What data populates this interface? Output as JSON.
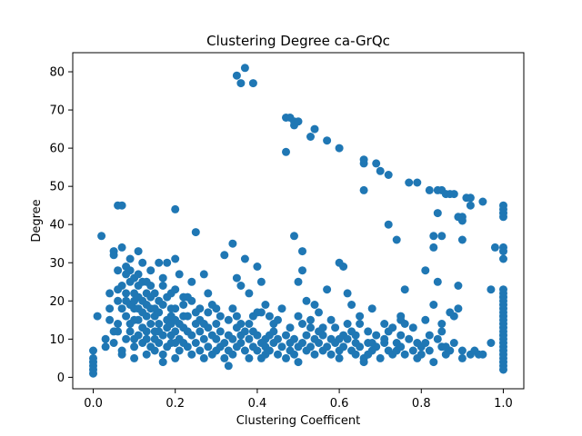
{
  "chart_data": {
    "type": "scatter",
    "title": "Clustering Degree ca-GrQc",
    "xlabel": "Clustering Coefficent",
    "ylabel": "Degree",
    "xlim": [
      -0.05,
      1.05
    ],
    "ylim": [
      -3,
      85
    ],
    "xticks": [
      0.0,
      0.2,
      0.4,
      0.6,
      0.8,
      1.0
    ],
    "xtick_labels": [
      "0.0",
      "0.2",
      "0.4",
      "0.6",
      "0.8",
      "1.0"
    ],
    "yticks": [
      0,
      10,
      20,
      30,
      40,
      50,
      60,
      70,
      80
    ],
    "ytick_labels": [
      "0",
      "10",
      "20",
      "30",
      "40",
      "50",
      "60",
      "70",
      "80"
    ],
    "grid": false,
    "color": "#1f77b4",
    "points": [
      [
        0.0,
        1
      ],
      [
        0.0,
        2
      ],
      [
        0.0,
        3
      ],
      [
        0.0,
        4
      ],
      [
        0.0,
        5
      ],
      [
        0.0,
        7
      ],
      [
        0.01,
        16
      ],
      [
        0.02,
        37
      ],
      [
        0.03,
        8
      ],
      [
        0.04,
        22
      ],
      [
        0.05,
        33
      ],
      [
        0.05,
        32
      ],
      [
        0.06,
        45
      ],
      [
        0.07,
        45
      ],
      [
        0.06,
        28
      ],
      [
        0.07,
        34
      ],
      [
        0.08,
        29
      ],
      [
        0.06,
        14
      ],
      [
        0.07,
        18
      ],
      [
        0.08,
        20
      ],
      [
        0.08,
        10
      ],
      [
        0.09,
        25
      ],
      [
        0.1,
        22
      ],
      [
        0.1,
        18
      ],
      [
        0.11,
        33
      ],
      [
        0.12,
        30
      ],
      [
        0.11,
        24
      ],
      [
        0.12,
        20
      ],
      [
        0.13,
        16
      ],
      [
        0.14,
        28
      ],
      [
        0.14,
        14
      ],
      [
        0.15,
        12
      ],
      [
        0.16,
        20
      ],
      [
        0.17,
        24
      ],
      [
        0.18,
        30
      ],
      [
        0.19,
        18
      ],
      [
        0.19,
        9
      ],
      [
        0.2,
        31
      ],
      [
        0.2,
        44
      ],
      [
        0.21,
        27
      ],
      [
        0.22,
        21
      ],
      [
        0.22,
        13
      ],
      [
        0.24,
        25
      ],
      [
        0.25,
        38
      ],
      [
        0.25,
        17
      ],
      [
        0.27,
        27
      ],
      [
        0.28,
        22
      ],
      [
        0.3,
        14
      ],
      [
        0.32,
        32
      ],
      [
        0.34,
        35
      ],
      [
        0.35,
        26
      ],
      [
        0.36,
        24
      ],
      [
        0.37,
        31
      ],
      [
        0.38,
        22
      ],
      [
        0.39,
        12
      ],
      [
        0.4,
        29
      ],
      [
        0.41,
        25
      ],
      [
        0.41,
        17
      ],
      [
        0.42,
        10
      ],
      [
        0.43,
        16
      ],
      [
        0.44,
        14
      ],
      [
        0.35,
        79
      ],
      [
        0.36,
        77
      ],
      [
        0.37,
        81
      ],
      [
        0.39,
        77
      ],
      [
        0.47,
        59
      ],
      [
        0.47,
        68
      ],
      [
        0.48,
        68
      ],
      [
        0.49,
        66
      ],
      [
        0.49,
        67
      ],
      [
        0.5,
        67
      ],
      [
        0.49,
        37
      ],
      [
        0.5,
        25
      ],
      [
        0.51,
        33
      ],
      [
        0.51,
        28
      ],
      [
        0.52,
        20
      ],
      [
        0.53,
        63
      ],
      [
        0.54,
        65
      ],
      [
        0.54,
        19
      ],
      [
        0.55,
        17
      ],
      [
        0.57,
        23
      ],
      [
        0.57,
        62
      ],
      [
        0.6,
        60
      ],
      [
        0.6,
        30
      ],
      [
        0.61,
        29
      ],
      [
        0.62,
        22
      ],
      [
        0.63,
        19
      ],
      [
        0.65,
        14
      ],
      [
        0.66,
        56
      ],
      [
        0.66,
        57
      ],
      [
        0.66,
        49
      ],
      [
        0.68,
        18
      ],
      [
        0.69,
        56
      ],
      [
        0.7,
        54
      ],
      [
        0.72,
        40
      ],
      [
        0.72,
        53
      ],
      [
        0.74,
        36
      ],
      [
        0.75,
        16
      ],
      [
        0.75,
        15
      ],
      [
        0.76,
        23
      ],
      [
        0.76,
        14
      ],
      [
        0.77,
        51
      ],
      [
        0.79,
        51
      ],
      [
        0.81,
        28
      ],
      [
        0.81,
        15
      ],
      [
        0.82,
        49
      ],
      [
        0.83,
        34
      ],
      [
        0.83,
        37
      ],
      [
        0.84,
        49
      ],
      [
        0.84,
        43
      ],
      [
        0.85,
        49
      ],
      [
        0.85,
        37
      ],
      [
        0.84,
        25
      ],
      [
        0.86,
        48
      ],
      [
        0.87,
        48
      ],
      [
        0.88,
        48
      ],
      [
        0.88,
        16
      ],
      [
        0.89,
        42
      ],
      [
        0.9,
        42
      ],
      [
        0.9,
        41
      ],
      [
        0.9,
        36
      ],
      [
        0.91,
        47
      ],
      [
        0.92,
        47
      ],
      [
        0.92,
        45
      ],
      [
        0.89,
        24
      ],
      [
        0.89,
        18
      ],
      [
        0.95,
        46
      ],
      [
        0.97,
        23
      ],
      [
        0.97,
        9
      ],
      [
        0.98,
        34
      ],
      [
        1.0,
        45
      ],
      [
        1.0,
        44
      ],
      [
        1.0,
        43
      ],
      [
        1.0,
        42
      ],
      [
        1.0,
        34
      ],
      [
        1.0,
        33
      ],
      [
        1.0,
        31
      ],
      [
        1.0,
        23
      ],
      [
        1.0,
        22
      ],
      [
        1.0,
        21
      ],
      [
        1.0,
        20
      ],
      [
        1.0,
        19
      ],
      [
        1.0,
        18
      ],
      [
        1.0,
        17
      ],
      [
        1.0,
        16
      ],
      [
        1.0,
        15
      ],
      [
        1.0,
        14
      ],
      [
        1.0,
        13
      ],
      [
        1.0,
        12
      ],
      [
        1.0,
        11
      ],
      [
        1.0,
        10
      ],
      [
        1.0,
        9
      ],
      [
        1.0,
        8
      ],
      [
        1.0,
        7
      ],
      [
        1.0,
        6
      ],
      [
        1.0,
        5
      ],
      [
        1.0,
        4
      ],
      [
        1.0,
        3
      ],
      [
        1.0,
        2
      ],
      [
        0.06,
        12
      ],
      [
        0.07,
        7
      ],
      [
        0.07,
        6
      ],
      [
        0.08,
        16
      ],
      [
        0.09,
        14
      ],
      [
        0.09,
        12
      ],
      [
        0.1,
        10
      ],
      [
        0.1,
        8
      ],
      [
        0.1,
        5
      ],
      [
        0.11,
        15
      ],
      [
        0.11,
        11
      ],
      [
        0.12,
        13
      ],
      [
        0.12,
        9
      ],
      [
        0.13,
        12
      ],
      [
        0.13,
        10
      ],
      [
        0.13,
        6
      ],
      [
        0.14,
        18
      ],
      [
        0.14,
        8
      ],
      [
        0.15,
        16
      ],
      [
        0.15,
        10
      ],
      [
        0.15,
        7
      ],
      [
        0.16,
        14
      ],
      [
        0.16,
        12
      ],
      [
        0.16,
        9
      ],
      [
        0.17,
        11
      ],
      [
        0.17,
        6
      ],
      [
        0.17,
        4
      ],
      [
        0.18,
        15
      ],
      [
        0.18,
        13
      ],
      [
        0.18,
        8
      ],
      [
        0.19,
        14
      ],
      [
        0.19,
        11
      ],
      [
        0.2,
        15
      ],
      [
        0.2,
        12
      ],
      [
        0.2,
        9
      ],
      [
        0.2,
        5
      ],
      [
        0.21,
        10
      ],
      [
        0.21,
        7
      ],
      [
        0.22,
        16
      ],
      [
        0.22,
        9
      ],
      [
        0.23,
        12
      ],
      [
        0.23,
        8
      ],
      [
        0.24,
        11
      ],
      [
        0.24,
        6
      ],
      [
        0.25,
        14
      ],
      [
        0.25,
        9
      ],
      [
        0.26,
        12
      ],
      [
        0.26,
        7
      ],
      [
        0.27,
        10
      ],
      [
        0.27,
        5
      ],
      [
        0.28,
        13
      ],
      [
        0.28,
        8
      ],
      [
        0.29,
        11
      ],
      [
        0.29,
        6
      ],
      [
        0.3,
        10
      ],
      [
        0.3,
        7
      ],
      [
        0.31,
        12
      ],
      [
        0.31,
        8
      ],
      [
        0.32,
        9
      ],
      [
        0.32,
        5
      ],
      [
        0.33,
        11
      ],
      [
        0.33,
        7
      ],
      [
        0.33,
        3
      ],
      [
        0.34,
        10
      ],
      [
        0.34,
        6
      ],
      [
        0.35,
        13
      ],
      [
        0.35,
        8
      ],
      [
        0.36,
        11
      ],
      [
        0.36,
        9
      ],
      [
        0.37,
        12
      ],
      [
        0.37,
        7
      ],
      [
        0.38,
        10
      ],
      [
        0.38,
        5
      ],
      [
        0.39,
        8
      ],
      [
        0.4,
        11
      ],
      [
        0.4,
        7
      ],
      [
        0.41,
        9
      ],
      [
        0.41,
        5
      ],
      [
        0.42,
        8
      ],
      [
        0.42,
        6
      ],
      [
        0.43,
        11
      ],
      [
        0.43,
        7
      ],
      [
        0.44,
        9
      ],
      [
        0.45,
        10
      ],
      [
        0.45,
        6
      ],
      [
        0.46,
        8
      ],
      [
        0.47,
        11
      ],
      [
        0.47,
        5
      ],
      [
        0.48,
        9
      ],
      [
        0.48,
        7
      ],
      [
        0.49,
        10
      ],
      [
        0.49,
        6
      ],
      [
        0.5,
        8
      ],
      [
        0.5,
        4
      ],
      [
        0.51,
        9
      ],
      [
        0.52,
        11
      ],
      [
        0.52,
        7
      ],
      [
        0.53,
        13
      ],
      [
        0.53,
        8
      ],
      [
        0.54,
        10
      ],
      [
        0.54,
        6
      ],
      [
        0.55,
        9
      ],
      [
        0.56,
        11
      ],
      [
        0.56,
        7
      ],
      [
        0.57,
        8
      ],
      [
        0.58,
        10
      ],
      [
        0.58,
        6
      ],
      [
        0.59,
        9
      ],
      [
        0.59,
        13
      ],
      [
        0.6,
        7
      ],
      [
        0.6,
        5
      ],
      [
        0.61,
        11
      ],
      [
        0.61,
        8
      ],
      [
        0.62,
        10
      ],
      [
        0.63,
        7
      ],
      [
        0.63,
        12
      ],
      [
        0.64,
        9
      ],
      [
        0.64,
        6
      ],
      [
        0.65,
        8
      ],
      [
        0.66,
        5
      ],
      [
        0.66,
        4
      ],
      [
        0.67,
        9
      ],
      [
        0.67,
        6
      ],
      [
        0.68,
        7
      ],
      [
        0.69,
        11
      ],
      [
        0.69,
        8
      ],
      [
        0.7,
        5
      ],
      [
        0.71,
        9
      ],
      [
        0.72,
        7
      ],
      [
        0.72,
        12
      ],
      [
        0.73,
        13
      ],
      [
        0.73,
        6
      ],
      [
        0.74,
        9
      ],
      [
        0.74,
        7
      ],
      [
        0.75,
        8
      ],
      [
        0.76,
        6
      ],
      [
        0.77,
        10
      ],
      [
        0.78,
        7
      ],
      [
        0.79,
        5
      ],
      [
        0.8,
        8
      ],
      [
        0.8,
        6
      ],
      [
        0.81,
        9
      ],
      [
        0.82,
        7
      ],
      [
        0.83,
        4
      ],
      [
        0.84,
        10
      ],
      [
        0.85,
        12
      ],
      [
        0.85,
        8
      ],
      [
        0.86,
        6
      ],
      [
        0.87,
        7
      ],
      [
        0.88,
        9
      ],
      [
        0.9,
        5
      ],
      [
        0.92,
        6
      ],
      [
        0.95,
        6
      ],
      [
        0.93,
        7
      ],
      [
        0.06,
        20
      ],
      [
        0.07,
        24
      ],
      [
        0.08,
        22
      ],
      [
        0.09,
        28
      ],
      [
        0.09,
        19
      ],
      [
        0.1,
        26
      ],
      [
        0.1,
        20
      ],
      [
        0.11,
        21
      ],
      [
        0.11,
        18
      ],
      [
        0.12,
        25
      ],
      [
        0.12,
        17
      ],
      [
        0.13,
        22
      ],
      [
        0.13,
        19
      ],
      [
        0.14,
        24
      ],
      [
        0.14,
        21
      ],
      [
        0.15,
        18
      ],
      [
        0.15,
        22
      ],
      [
        0.16,
        17
      ],
      [
        0.17,
        19
      ],
      [
        0.18,
        21
      ],
      [
        0.19,
        16
      ],
      [
        0.2,
        18
      ],
      [
        0.21,
        14
      ],
      [
        0.22,
        19
      ],
      [
        0.23,
        16
      ],
      [
        0.24,
        20
      ],
      [
        0.26,
        15
      ],
      [
        0.28,
        17
      ],
      [
        0.29,
        19
      ],
      [
        0.3,
        18
      ],
      [
        0.33,
        15
      ],
      [
        0.35,
        16
      ],
      [
        0.38,
        14
      ],
      [
        0.4,
        17
      ],
      [
        0.42,
        19
      ],
      [
        0.45,
        15
      ],
      [
        0.46,
        18
      ],
      [
        0.5,
        16
      ],
      [
        0.51,
        14
      ],
      [
        0.55,
        12
      ],
      [
        0.58,
        15
      ],
      [
        0.62,
        14
      ],
      [
        0.65,
        16
      ],
      [
        0.67,
        12
      ],
      [
        0.71,
        14
      ],
      [
        0.78,
        13
      ],
      [
        0.83,
        19
      ],
      [
        0.85,
        14
      ],
      [
        0.87,
        17
      ],
      [
        0.04,
        15
      ],
      [
        0.05,
        12
      ],
      [
        0.03,
        10
      ],
      [
        0.05,
        9
      ],
      [
        0.04,
        18
      ],
      [
        0.06,
        23
      ],
      [
        0.08,
        27
      ],
      [
        0.09,
        31
      ],
      [
        0.1,
        15
      ],
      [
        0.11,
        27
      ],
      [
        0.13,
        25
      ],
      [
        0.16,
        30
      ],
      [
        0.17,
        26
      ],
      [
        0.19,
        22
      ],
      [
        0.2,
        23
      ],
      [
        0.23,
        21
      ],
      [
        0.26,
        18
      ],
      [
        0.27,
        14
      ],
      [
        0.31,
        16
      ],
      [
        0.34,
        18
      ],
      [
        0.36,
        14
      ],
      [
        0.39,
        16
      ],
      [
        0.44,
        12
      ],
      [
        0.48,
        13
      ],
      [
        0.53,
        15
      ],
      [
        0.56,
        13
      ],
      [
        0.6,
        10
      ],
      [
        0.64,
        11
      ],
      [
        0.68,
        9
      ],
      [
        0.71,
        10
      ],
      [
        0.75,
        11
      ],
      [
        0.79,
        9
      ],
      [
        0.82,
        11
      ],
      [
        0.86,
        8
      ],
      [
        0.9,
        7
      ],
      [
        0.94,
        6
      ]
    ]
  }
}
